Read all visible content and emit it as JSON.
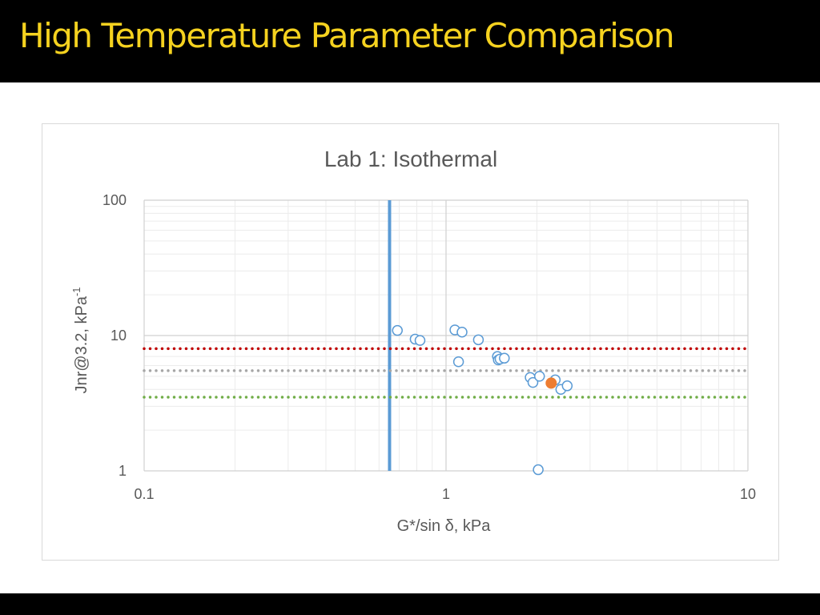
{
  "slide": {
    "title": "High Temperature Parameter Comparison"
  },
  "colors": {
    "slide_background": "#000000",
    "title_text": "#f5d21f",
    "vertical_line": "#5b9bd5",
    "points": "#5b9bd5",
    "highlight_point": "#ed7d31",
    "line_red": "#c00000",
    "line_grey": "#a6a6a6",
    "line_green": "#70ad47"
  },
  "chart_data": {
    "type": "scatter",
    "title": "Lab 1: Isothermal",
    "xlabel": "G*/sin δ, kPa",
    "ylabel": "Jnr@3.2, kPa",
    "ylabel_sup": "-1",
    "xscale": "log",
    "yscale": "log",
    "xlim": [
      0.1,
      10
    ],
    "ylim": [
      1,
      100
    ],
    "xticks": [
      "0.1",
      "1",
      "10"
    ],
    "yticks": [
      "1",
      "10",
      "100"
    ],
    "grid": true,
    "legend": "none",
    "series": [
      {
        "marker": "open-circle",
        "points": [
          [
            0.69,
            10.9
          ],
          [
            0.79,
            9.4
          ],
          [
            0.82,
            9.2
          ],
          [
            1.07,
            11.0
          ],
          [
            1.13,
            10.6
          ],
          [
            1.1,
            6.4
          ],
          [
            1.28,
            9.3
          ],
          [
            1.48,
            7.0
          ],
          [
            1.49,
            6.6
          ],
          [
            1.51,
            6.7
          ],
          [
            1.56,
            6.8
          ],
          [
            1.9,
            4.9
          ],
          [
            1.94,
            4.5
          ],
          [
            2.04,
            5.0
          ],
          [
            2.02,
            1.02
          ],
          [
            2.3,
            4.7
          ],
          [
            2.4,
            4.0
          ],
          [
            2.52,
            4.25
          ]
        ]
      },
      {
        "marker": "filled-circle",
        "points": [
          [
            2.23,
            4.45
          ]
        ]
      }
    ],
    "reference_lines": [
      {
        "orientation": "vertical",
        "value": 0.65,
        "style": "solid"
      },
      {
        "orientation": "horizontal",
        "value": 8.0,
        "style": "dotted",
        "color": "#c00000"
      },
      {
        "orientation": "horizontal",
        "value": 5.5,
        "style": "dotted",
        "color": "#a6a6a6"
      },
      {
        "orientation": "horizontal",
        "value": 3.5,
        "style": "dotted",
        "color": "#70ad47"
      }
    ]
  }
}
